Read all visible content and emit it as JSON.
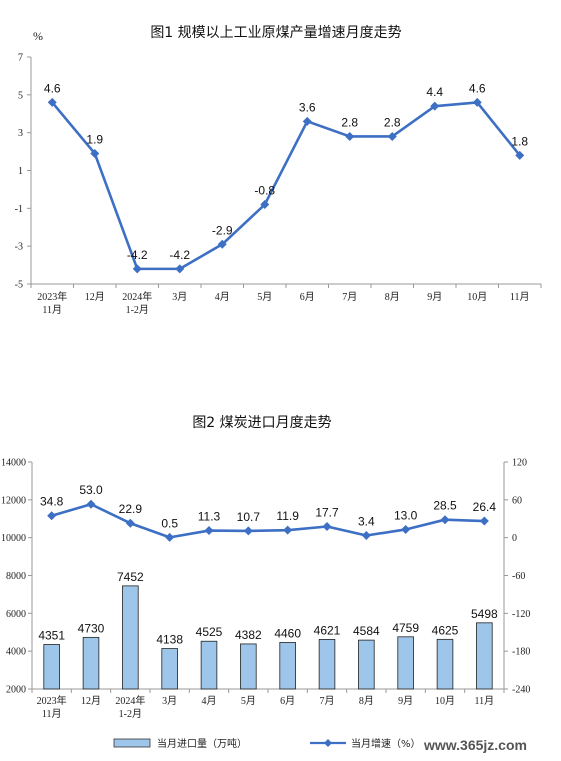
{
  "watermark": "www.365jz.com",
  "chart_data": [
    {
      "type": "line",
      "title": "图1 规模以上工业原煤产量增速月度走势",
      "ylabel": "%",
      "ylim": [
        -5,
        7
      ],
      "yticks": [
        "7",
        "5",
        "3",
        "1",
        "-1",
        "-3",
        "-5"
      ],
      "categories": [
        [
          "2023年",
          "11月"
        ],
        [
          "12月"
        ],
        [
          "2024年",
          "1-2月"
        ],
        [
          "3月"
        ],
        [
          "4月"
        ],
        [
          "5月"
        ],
        [
          "6月"
        ],
        [
          "7月"
        ],
        [
          "8月"
        ],
        [
          "9月"
        ],
        [
          "10月"
        ],
        [
          "11月"
        ]
      ],
      "series": [
        {
          "values": [
            4.6,
            1.9,
            -4.2,
            -4.2,
            -2.9,
            -0.8,
            3.6,
            2.8,
            2.8,
            4.4,
            4.6,
            1.8
          ],
          "labels": [
            "4.6",
            "1.9",
            "-4.2",
            "-4.2",
            "-2.9",
            "-0.8",
            "3.6",
            "2.8",
            "2.8",
            "4.4",
            "4.6",
            "1.8"
          ],
          "color": "#3d6fc4"
        }
      ],
      "grid": false
    },
    {
      "type": "bar+line",
      "title": "图2 煤炭进口月度走势",
      "ylim_left": [
        2000,
        14000
      ],
      "yticks_left": [
        "14000",
        "12000",
        "10000",
        "8000",
        "6000",
        "4000",
        "2000"
      ],
      "ylim_right": [
        -240,
        120
      ],
      "yticks_right": [
        "120",
        "60",
        "0",
        "-60",
        "-120",
        "-180",
        "-240"
      ],
      "categories": [
        [
          "2023年",
          "11月"
        ],
        [
          "12月"
        ],
        [
          "2024年",
          "1-2月"
        ],
        [
          "3月"
        ],
        [
          "4月"
        ],
        [
          "5月"
        ],
        [
          "6月"
        ],
        [
          "7月"
        ],
        [
          "8月"
        ],
        [
          "9月"
        ],
        [
          "10月"
        ],
        [
          "11月"
        ]
      ],
      "bar_series": {
        "name": "当月进口量（万吨）",
        "values": [
          4351,
          4730,
          7452,
          4138,
          4525,
          4382,
          4460,
          4621,
          4584,
          4759,
          4625,
          5498
        ],
        "labels": [
          "4351",
          "4730",
          "7452",
          "4138",
          "4525",
          "4382",
          "4460",
          "4621",
          "4584",
          "4759",
          "4625",
          "5498"
        ],
        "color": "#9ec5ea"
      },
      "line_series": {
        "name": "当月增速（%）",
        "values": [
          34.8,
          53.0,
          22.9,
          0.5,
          11.3,
          10.7,
          11.9,
          17.7,
          3.4,
          13.0,
          28.5,
          26.4
        ],
        "labels": [
          "34.8",
          "53.0",
          "22.9",
          "0.5",
          "11.3",
          "10.7",
          "11.9",
          "17.7",
          "3.4",
          "13.0",
          "28.5",
          "26.4"
        ],
        "color": "#3d6fc4"
      },
      "legend": "bottom",
      "grid": false
    }
  ]
}
